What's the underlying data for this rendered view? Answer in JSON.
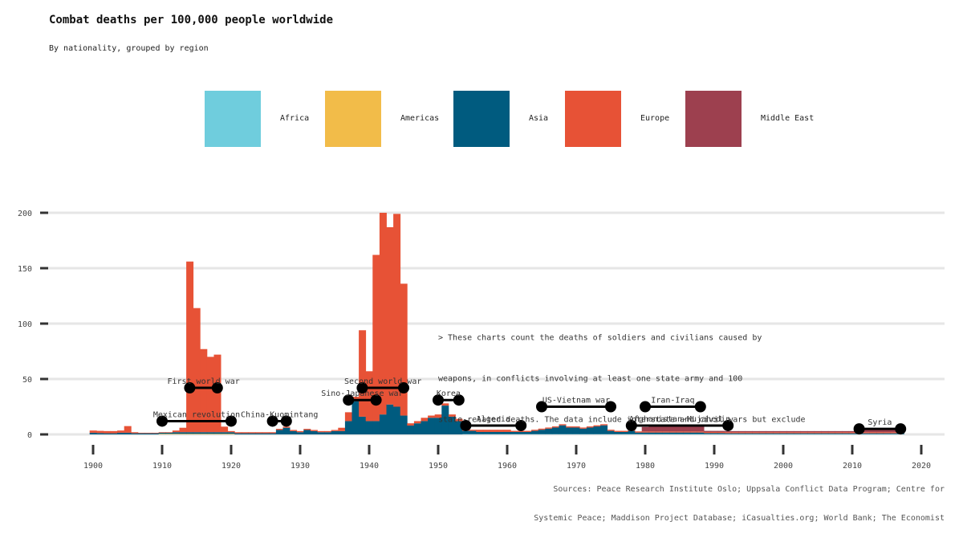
{
  "colors": {
    "Africa": "#6fcddd",
    "Americas": "#f2bc49",
    "Asia": "#005b7f",
    "Europe": "#e75236",
    "Middle East": "#9d404f",
    "grid": "#e6e6e6",
    "axis_tick": "#333333",
    "marker": "#000000"
  },
  "chart_data": {
    "type": "bar",
    "stacked": true,
    "title": "Combat deaths per 100,000 people worldwide",
    "subtitle": "By nationality, grouped by region",
    "xlabel": "",
    "ylabel": "",
    "xlim": [
      1894,
      2020
    ],
    "ylim": [
      0,
      200
    ],
    "yticks": [
      0,
      50,
      100,
      150,
      200
    ],
    "xticks": [
      1900,
      1910,
      1920,
      1930,
      1940,
      1950,
      1960,
      1970,
      1980,
      1990,
      2000,
      2010,
      2020
    ],
    "legend": {
      "position": "top-center",
      "entries": [
        "Africa",
        "Americas",
        "Asia",
        "Europe",
        "Middle East"
      ]
    },
    "years": [
      1900,
      1901,
      1902,
      1903,
      1904,
      1905,
      1906,
      1907,
      1908,
      1909,
      1910,
      1911,
      1912,
      1913,
      1914,
      1915,
      1916,
      1917,
      1918,
      1919,
      1920,
      1921,
      1922,
      1923,
      1924,
      1925,
      1926,
      1927,
      1928,
      1929,
      1930,
      1931,
      1932,
      1933,
      1934,
      1935,
      1936,
      1937,
      1938,
      1939,
      1940,
      1941,
      1942,
      1943,
      1944,
      1945,
      1946,
      1947,
      1948,
      1949,
      1950,
      1951,
      1952,
      1953,
      1954,
      1955,
      1956,
      1957,
      1958,
      1959,
      1960,
      1961,
      1962,
      1963,
      1964,
      1965,
      1966,
      1967,
      1968,
      1969,
      1970,
      1971,
      1972,
      1973,
      1974,
      1975,
      1976,
      1977,
      1978,
      1979,
      1980,
      1981,
      1982,
      1983,
      1984,
      1985,
      1986,
      1987,
      1988,
      1989,
      1990,
      1991,
      1992,
      1993,
      1994,
      1995,
      1996,
      1997,
      1998,
      1999,
      2000,
      2001,
      2002,
      2003,
      2004,
      2005,
      2006,
      2007,
      2008,
      2009,
      2010,
      2011,
      2012,
      2013,
      2014,
      2015,
      2016,
      2017
    ],
    "series": [
      {
        "name": "Africa",
        "values": [
          0,
          0,
          0,
          0,
          0,
          0,
          0,
          0,
          0,
          0,
          0,
          0,
          0,
          0,
          0,
          0,
          0,
          0,
          0,
          0,
          0,
          0,
          0,
          0,
          0,
          0,
          0,
          0,
          0,
          0,
          0,
          0,
          0,
          0,
          0,
          0,
          0,
          0,
          0,
          0,
          0,
          0,
          0,
          0,
          0,
          0,
          0,
          0,
          0,
          0,
          0,
          0,
          0,
          0,
          0.2,
          0.2,
          0.2,
          0.2,
          0.2,
          0.2,
          0.2,
          0.2,
          0.2,
          0.2,
          0.2,
          0.2,
          0.2,
          0.2,
          0.2,
          0.2,
          0.2,
          0.2,
          0.2,
          0.2,
          0.2,
          0.2,
          0.2,
          0.2,
          0.2,
          0.2,
          0.2,
          0.2,
          0.2,
          0.2,
          0.2,
          0.2,
          0.2,
          0.2,
          0.2,
          0.2,
          0.2,
          0.2,
          0.2,
          0.2,
          0.2,
          0.2,
          0.2,
          0.2,
          0.2,
          0.2,
          0.2,
          0.2,
          0.2,
          0.2,
          0.2,
          0.2,
          0.2,
          0.2,
          0.2,
          0.2,
          0.2,
          0.2,
          0.2,
          0.2,
          0.2,
          0.2,
          0.2,
          0.2
        ]
      },
      {
        "name": "Americas",
        "values": [
          0,
          0,
          0,
          0,
          0,
          0,
          0,
          0,
          0,
          0,
          0.5,
          0.5,
          0.5,
          0.5,
          0.5,
          0.5,
          0.5,
          0.5,
          0.5,
          0.5,
          0.5,
          0,
          0,
          0,
          0,
          0,
          0,
          0,
          0,
          0,
          0,
          0,
          0,
          0,
          0,
          0,
          0,
          0,
          0,
          0,
          0,
          0,
          0,
          0,
          0,
          0,
          0,
          0,
          0,
          0,
          0,
          0,
          0,
          0,
          0,
          0,
          0,
          0,
          0,
          0,
          0,
          0,
          0,
          0,
          0,
          0,
          0,
          0,
          0,
          0,
          0,
          0,
          0,
          0,
          0,
          0,
          0,
          0,
          0,
          0,
          0,
          0,
          0,
          0,
          0,
          0,
          0,
          0,
          0,
          0,
          0,
          0,
          0,
          0,
          0,
          0,
          0,
          0,
          0,
          0,
          0,
          0,
          0,
          0,
          0,
          0,
          0,
          0,
          0,
          0,
          0,
          0,
          0,
          0,
          0,
          0,
          0,
          0
        ]
      },
      {
        "name": "Asia",
        "values": [
          1.5,
          1.2,
          1,
          1,
          1.5,
          1.5,
          1,
          1,
          1,
          1,
          1,
          1,
          1.5,
          1.5,
          1.5,
          1.5,
          1.5,
          1.5,
          1.5,
          1.5,
          1.5,
          1,
          1,
          1,
          1,
          1,
          1,
          4,
          6,
          3,
          2,
          4,
          3,
          2,
          2,
          3,
          3,
          12,
          30,
          16,
          12,
          12,
          18,
          27,
          25,
          17,
          8,
          10,
          12,
          15,
          15,
          26,
          16,
          12,
          3,
          3,
          2,
          2,
          2,
          2,
          2,
          2,
          2,
          2,
          3,
          4,
          5,
          6,
          8,
          6,
          6,
          5,
          6,
          7,
          8,
          3,
          2,
          2,
          3,
          1.5,
          1.5,
          1.5,
          1.5,
          1.5,
          1.5,
          1.5,
          1.5,
          1.5,
          1.5,
          1,
          1,
          1,
          0.8,
          0.8,
          0.8,
          0.8,
          0.8,
          0.8,
          0.8,
          0.8,
          0.8,
          0.8,
          0.8,
          0.8,
          0.8,
          0.8,
          0.8,
          0.8,
          0.8,
          0.8,
          0.8,
          0.8,
          0.8,
          0.8,
          0.8,
          0.8,
          0.8,
          0.8
        ]
      },
      {
        "name": "Europe",
        "values": [
          2,
          2,
          2,
          2,
          2,
          6,
          1,
          0.5,
          0.5,
          0.5,
          0.5,
          0.5,
          1.5,
          4,
          154,
          112,
          75,
          68,
          70,
          5,
          1,
          1,
          1,
          1,
          1,
          1,
          1,
          1,
          1,
          1,
          1,
          1,
          1,
          1,
          1,
          1,
          3,
          8,
          4,
          78,
          45,
          150,
          182,
          160,
          174,
          119,
          2,
          2,
          3,
          2,
          3,
          2,
          2,
          2,
          1,
          1,
          2,
          2,
          2,
          2,
          2,
          1,
          1,
          1,
          1,
          1,
          1,
          1,
          1,
          1,
          1,
          1,
          1,
          1,
          1,
          1,
          1,
          1,
          1,
          1,
          1,
          1,
          1,
          1,
          1,
          1,
          1,
          1,
          1,
          1,
          1,
          1,
          1,
          1,
          1,
          1,
          1,
          1,
          1,
          1,
          1,
          1,
          1,
          1,
          1,
          1,
          1,
          1,
          1,
          1,
          1,
          1,
          1,
          1,
          1,
          1,
          1,
          1
        ]
      },
      {
        "name": "Middle East",
        "values": [
          0,
          0,
          0,
          0,
          0,
          0,
          0,
          0,
          0,
          0,
          0,
          0,
          0,
          0,
          0,
          0,
          0,
          0,
          0,
          0,
          0,
          0,
          0,
          0,
          0,
          0,
          0,
          0,
          0,
          0,
          0,
          0,
          0,
          0,
          0,
          0,
          0,
          0,
          0,
          0,
          0,
          0,
          0,
          0,
          0,
          0,
          0,
          0,
          0,
          0,
          0,
          0,
          0,
          0,
          0,
          0,
          0,
          0,
          0,
          0,
          0,
          0,
          0,
          0,
          0,
          0,
          0,
          0,
          0,
          0,
          0,
          0,
          0,
          0,
          0,
          0,
          0,
          0,
          0,
          0,
          4,
          5,
          5,
          5,
          5,
          5,
          5,
          5,
          5,
          1,
          1,
          1,
          1,
          1,
          1,
          1,
          1,
          1,
          1,
          1,
          1,
          1,
          1,
          1,
          1,
          1,
          1,
          1,
          1,
          1,
          1,
          2,
          3,
          3,
          3,
          3,
          2,
          1.5
        ]
      }
    ],
    "wars": [
      {
        "label": "Mexican revolution",
        "start": 1910,
        "end": 1920,
        "y": 12
      },
      {
        "label": "First world war",
        "start": 1914,
        "end": 1918,
        "y": 42
      },
      {
        "label": "China-Kuomintang",
        "start": 1926,
        "end": 1928,
        "y": 12
      },
      {
        "label": "Sino-Japanese war",
        "start": 1937,
        "end": 1941,
        "y": 31
      },
      {
        "label": "Second world war",
        "start": 1939,
        "end": 1945,
        "y": 42
      },
      {
        "label": "Korea",
        "start": 1950,
        "end": 1953,
        "y": 31
      },
      {
        "label": "Algeria",
        "start": 1954,
        "end": 1962,
        "y": 8
      },
      {
        "label": "US-Vietnam war",
        "start": 1965,
        "end": 1975,
        "y": 25
      },
      {
        "label": "Iran-Iraq",
        "start": 1980,
        "end": 1988,
        "y": 25
      },
      {
        "label": "Afghanistan-Mujahedin",
        "start": 1978,
        "end": 1992,
        "y": 8
      },
      {
        "label": "Syria",
        "start": 2011,
        "end": 2017,
        "y": 5
      }
    ],
    "note": {
      "lines": [
        "> These charts count the deaths of soldiers and civilians caused by",
        "weapons, in conflicts involving at least one state army and 100",
        "state-related deaths. The data include interstate and civil wars but exclude"
      ],
      "x": 1950,
      "y": 85
    },
    "sources": [
      "Sources: Peace Research Institute Oslo; Uppsala Conflict Data Program; Centre for",
      "Systemic Peace; Maddison Project Database; iCasualties.org; World Bank; The Economist"
    ]
  }
}
